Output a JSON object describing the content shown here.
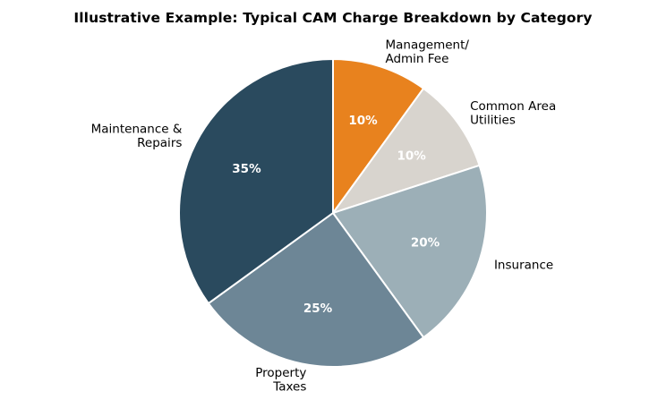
{
  "chart_data": {
    "type": "pie",
    "title": "Illustrative Example: Typical CAM Charge Breakdown by Category",
    "start_angle_deg": 90,
    "direction": "clockwise",
    "slices": [
      {
        "label": "Management/\nAdmin Fee",
        "value": 10,
        "pct_text": "10%",
        "color": "#E8821E"
      },
      {
        "label": "Common Area\nUtilities",
        "value": 10,
        "pct_text": "10%",
        "color": "#D8D4CE"
      },
      {
        "label": "Insurance",
        "value": 20,
        "pct_text": "20%",
        "color": "#9CAFB7"
      },
      {
        "label": "Property\nTaxes",
        "value": 25,
        "pct_text": "25%",
        "color": "#6D8696"
      },
      {
        "label": "Maintenance &\nRepairs",
        "value": 35,
        "pct_text": "35%",
        "color": "#2A4A5E"
      }
    ]
  }
}
